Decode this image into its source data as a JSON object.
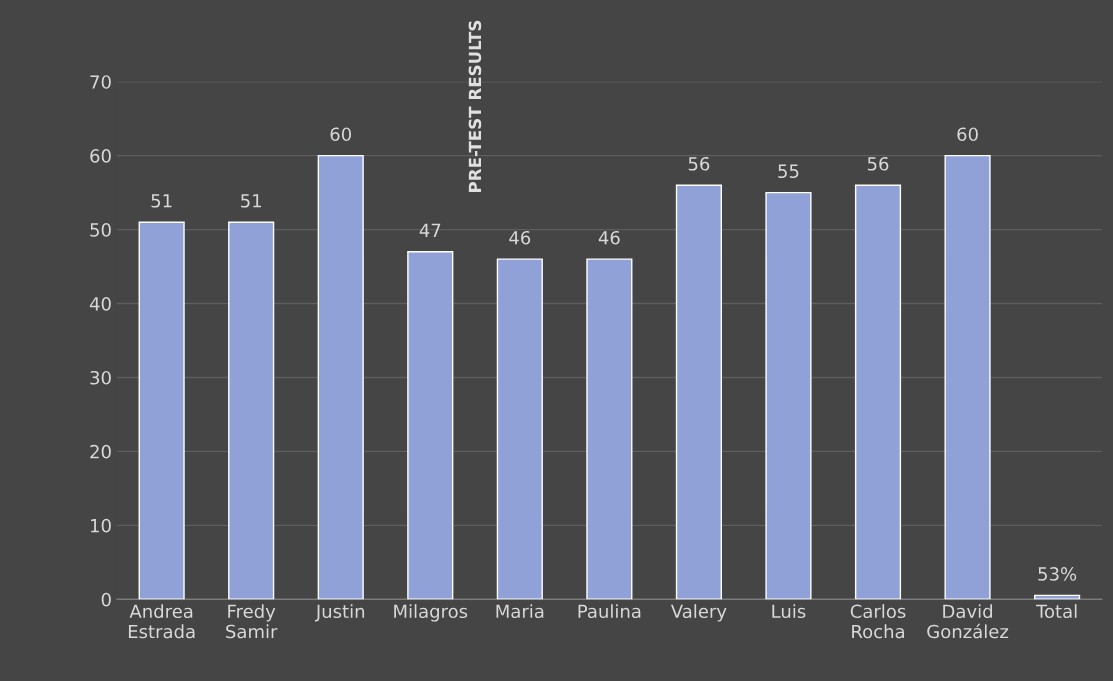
{
  "chart_data": {
    "type": "bar",
    "title": "PRE-TEST RESULTS",
    "categories": [
      "Andrea\nEstrada",
      "Fredy\nSamir",
      "Justin",
      "Milagros",
      "Maria",
      "Paulina",
      "Valery",
      "Luis",
      "Carlos\nRocha",
      "David\nGonzález",
      "Total"
    ],
    "values": [
      51,
      51,
      60,
      47,
      46,
      46,
      56,
      55,
      56,
      60,
      0.53
    ],
    "value_labels": [
      "51",
      "51",
      "60",
      "47",
      "46",
      "46",
      "56",
      "55",
      "56",
      "60",
      "53%"
    ],
    "color": "#8fa1d6",
    "ylim": [
      0,
      70
    ],
    "yticks": [
      0,
      10,
      20,
      30,
      40,
      50,
      60,
      70
    ],
    "grid": "y"
  }
}
